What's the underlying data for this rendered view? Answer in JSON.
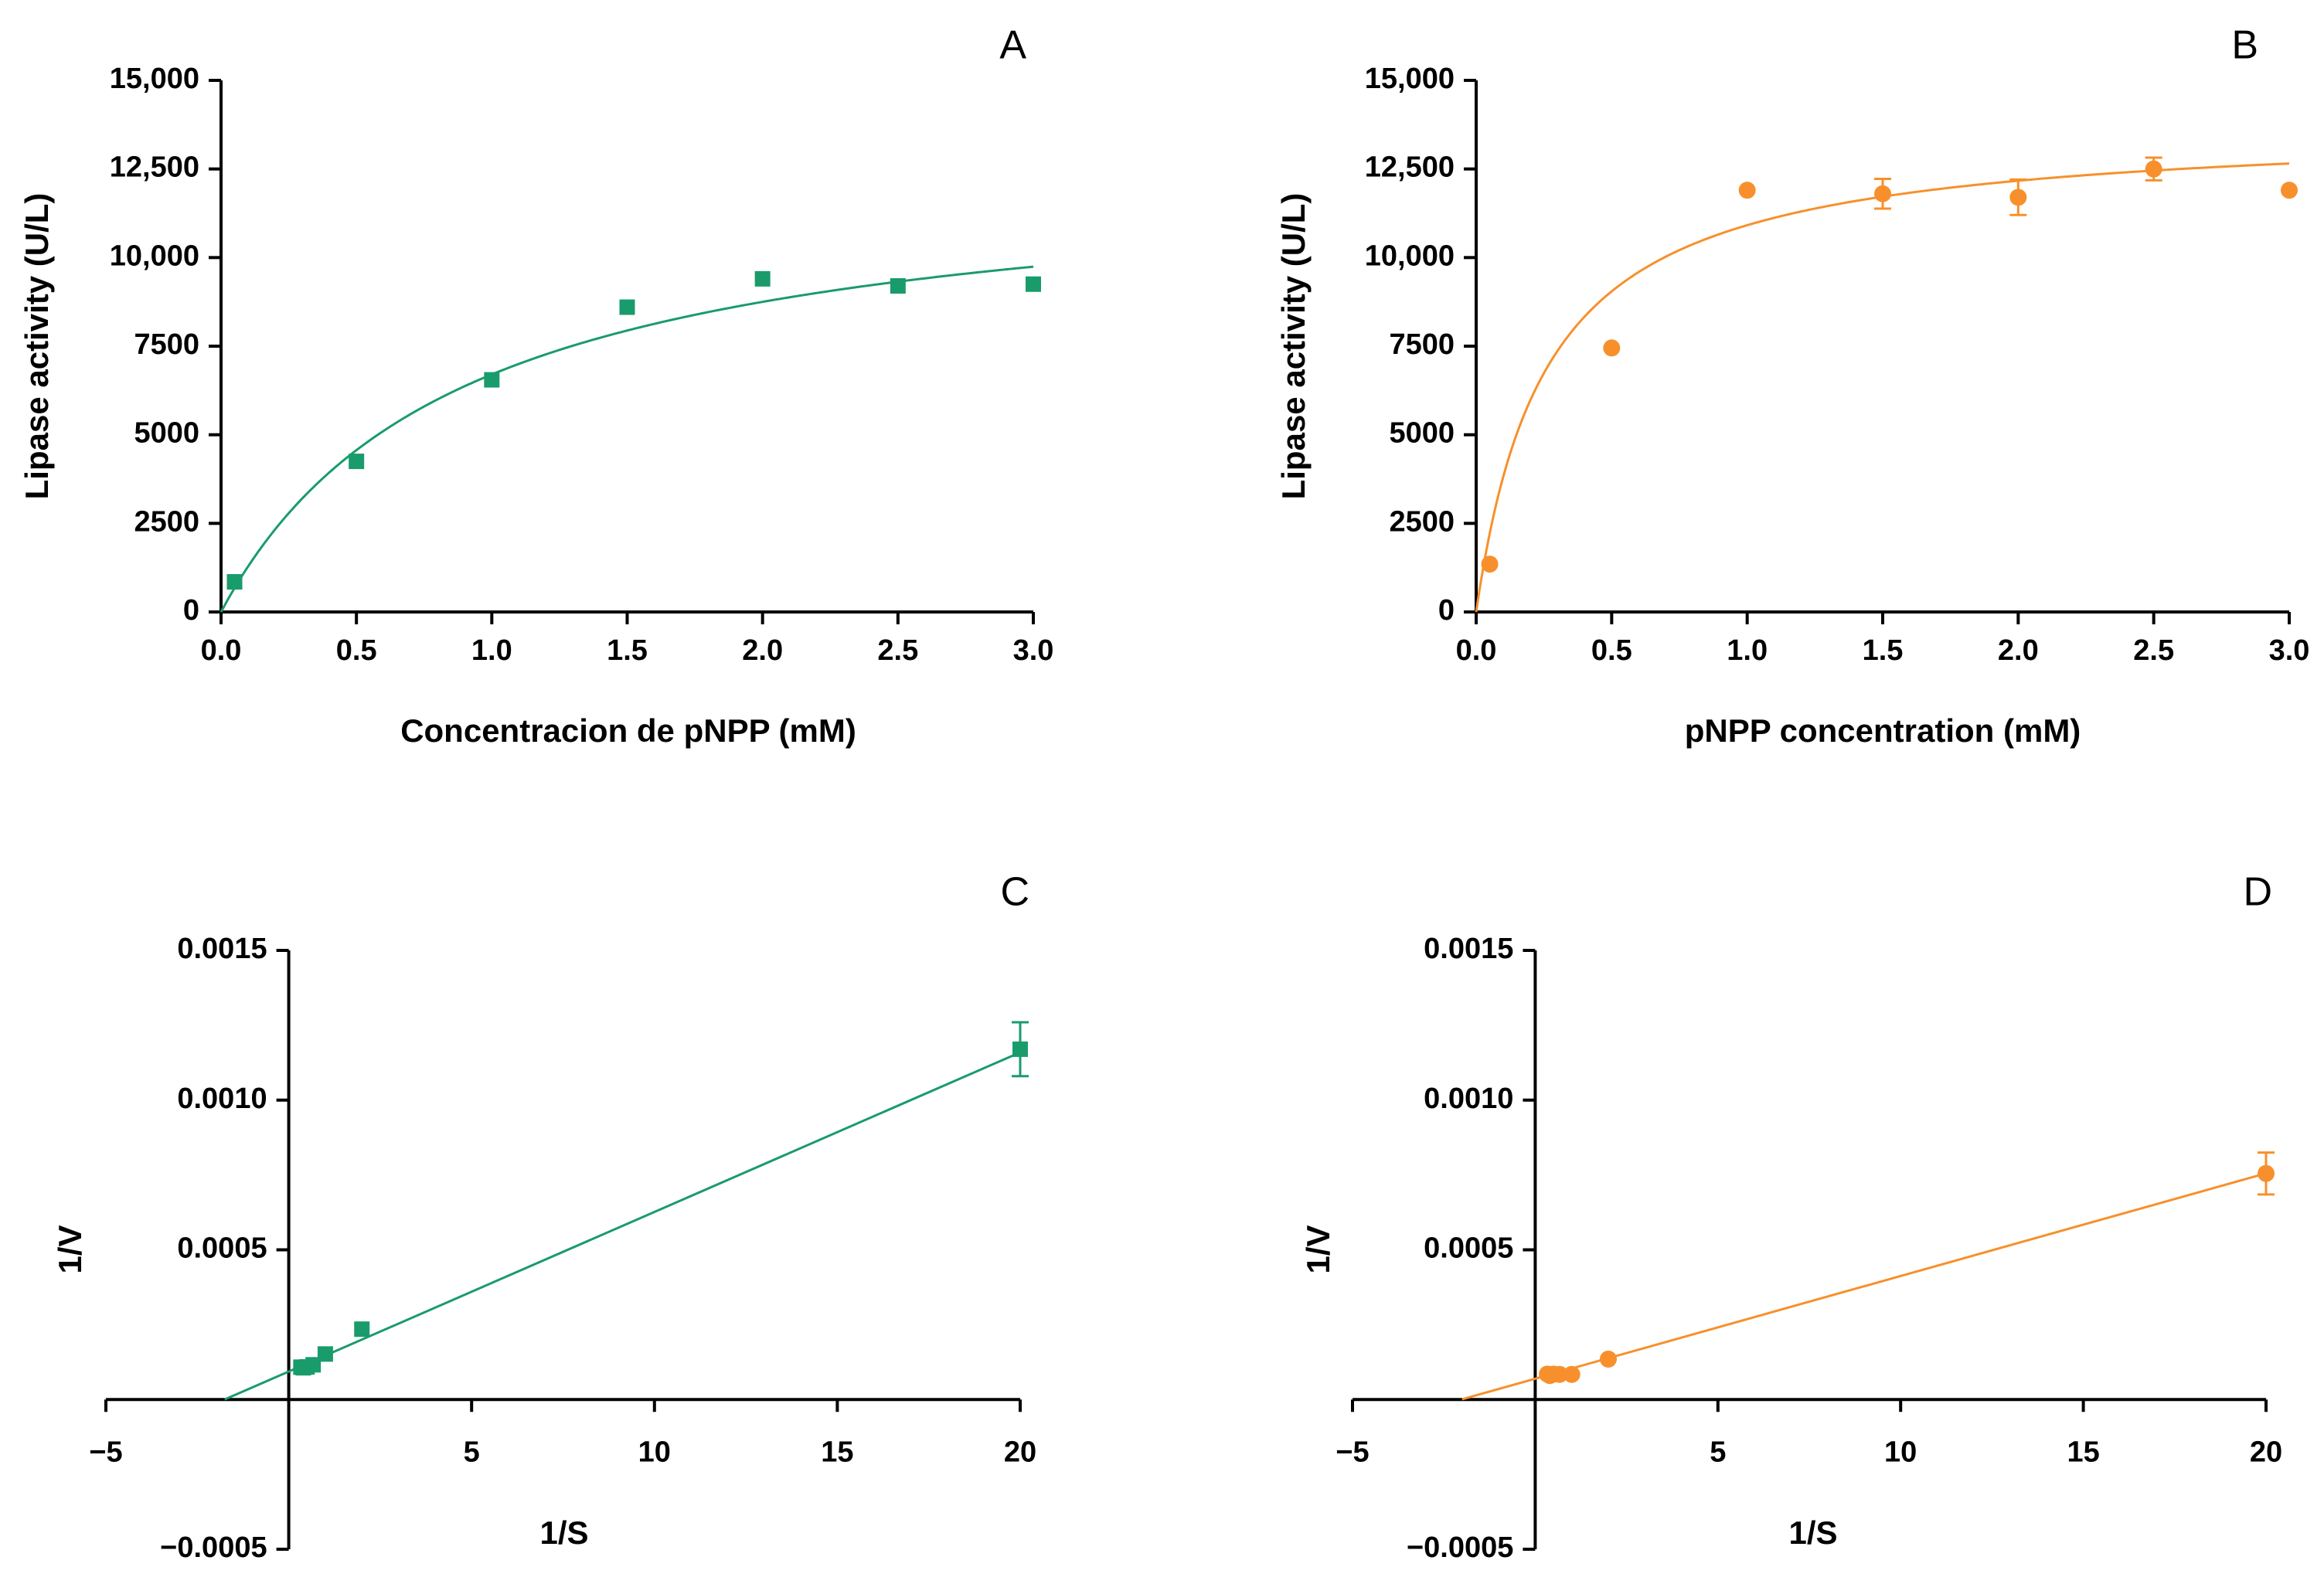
{
  "figure": {
    "panels": [
      {
        "letter": "A",
        "color": "#1a9b6c",
        "marker": "square"
      },
      {
        "letter": "B",
        "color": "#f7902c",
        "marker": "circle"
      },
      {
        "letter": "C",
        "color": "#1a9b6c",
        "marker": "square"
      },
      {
        "letter": "D",
        "color": "#f7902c",
        "marker": "circle"
      }
    ]
  },
  "chart_data": [
    {
      "panel": "A",
      "type": "scatter",
      "xlabel": "Concentracion de pNPP (mM)",
      "ylabel": "Lipase activity (U/L)",
      "xlim": [
        0,
        3
      ],
      "ylim": [
        0,
        15000
      ],
      "xticks": [
        "0.0",
        "0.5",
        "1.0",
        "1.5",
        "2.0",
        "2.5",
        "3.0"
      ],
      "yticks": [
        "0",
        "2500",
        "5000",
        "7500",
        "10,000",
        "12,500",
        "15,000"
      ],
      "grid": false,
      "points": [
        {
          "x": 0.05,
          "y": 850
        },
        {
          "x": 0.5,
          "y": 4250
        },
        {
          "x": 1.0,
          "y": 6550
        },
        {
          "x": 1.5,
          "y": 8600
        },
        {
          "x": 2.0,
          "y": 9400
        },
        {
          "x": 2.5,
          "y": 9200
        },
        {
          "x": 3.0,
          "y": 9250
        }
      ],
      "fit": {
        "type": "michaelis-menten",
        "vmax": 12600,
        "km": 0.88
      }
    },
    {
      "panel": "B",
      "type": "scatter",
      "xlabel": "pNPP concentration (mM)",
      "ylabel": "Lipase activity (U/L)",
      "xlim": [
        0,
        3
      ],
      "ylim": [
        0,
        15000
      ],
      "xticks": [
        "0.0",
        "0.5",
        "1.0",
        "1.5",
        "2.0",
        "2.5",
        "3.0"
      ],
      "yticks": [
        "0",
        "2500",
        "5000",
        "7500",
        "10,000",
        "12,500",
        "15,000"
      ],
      "grid": false,
      "points": [
        {
          "x": 0.05,
          "y": 1350,
          "err": 120
        },
        {
          "x": 0.5,
          "y": 7450,
          "err": 100
        },
        {
          "x": 1.0,
          "y": 11900,
          "err": 100
        },
        {
          "x": 1.5,
          "y": 11800,
          "err": 420
        },
        {
          "x": 2.0,
          "y": 11700,
          "err": 500
        },
        {
          "x": 2.5,
          "y": 12500,
          "err": 320
        },
        {
          "x": 3.0,
          "y": 11900,
          "err": 100
        }
      ],
      "fit": {
        "type": "michaelis-menten",
        "vmax": 13750,
        "km": 0.26
      }
    },
    {
      "panel": "C",
      "type": "scatter",
      "xlabel": "1/S",
      "ylabel": "1/V",
      "xlim": [
        -5,
        20
      ],
      "ylim": [
        -0.0005,
        0.0015
      ],
      "xticks": [
        "−5",
        "5",
        "10",
        "15",
        "20"
      ],
      "yticks": [
        "−0.0005",
        "0.0005",
        "0.0010",
        "0.0015"
      ],
      "grid": false,
      "points": [
        {
          "x": 0.333,
          "y": 0.000108,
          "err": 5e-06
        },
        {
          "x": 0.4,
          "y": 0.000106,
          "err": 5e-06
        },
        {
          "x": 0.5,
          "y": 0.000109,
          "err": 5e-06
        },
        {
          "x": 0.667,
          "y": 0.000116,
          "err": 5e-06
        },
        {
          "x": 1.0,
          "y": 0.000152,
          "err": 1.2e-05
        },
        {
          "x": 2.0,
          "y": 0.000235,
          "err": 1.5e-05
        },
        {
          "x": 20.0,
          "y": 0.00117,
          "err": 9e-05
        }
      ],
      "fit": {
        "type": "linear",
        "slope": 5.33e-05,
        "intercept": 9.35e-05,
        "x_start": -1.75,
        "x_end": 20.0
      }
    },
    {
      "panel": "D",
      "type": "scatter",
      "xlabel": "1/S",
      "ylabel": "1/V",
      "xlim": [
        -5,
        20
      ],
      "ylim": [
        -0.0005,
        0.0015
      ],
      "xticks": [
        "−5",
        "5",
        "10",
        "15",
        "20"
      ],
      "yticks": [
        "−0.0005",
        "0.0005",
        "0.0010",
        "0.0015"
      ],
      "grid": false,
      "points": [
        {
          "x": 0.333,
          "y": 8.5e-05,
          "err": 5e-06
        },
        {
          "x": 0.4,
          "y": 8e-05,
          "err": 5e-06
        },
        {
          "x": 0.5,
          "y": 8.5e-05,
          "err": 5e-06
        },
        {
          "x": 0.667,
          "y": 8.4e-05,
          "err": 5e-06
        },
        {
          "x": 1.0,
          "y": 8.4e-05,
          "err": 5e-06
        },
        {
          "x": 2.0,
          "y": 0.000135,
          "err": 8e-06
        },
        {
          "x": 20.0,
          "y": 0.000755,
          "err": 7e-05
        }
      ],
      "fit": {
        "type": "linear",
        "slope": 3.43e-05,
        "intercept": 6.95e-05,
        "x_start": -2.0,
        "x_end": 20.0
      }
    }
  ]
}
